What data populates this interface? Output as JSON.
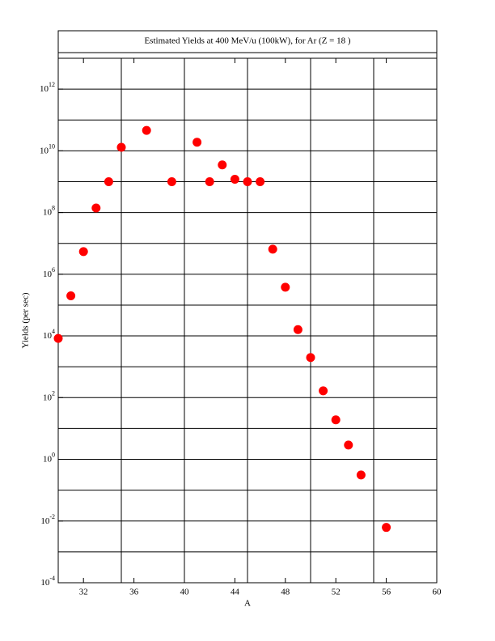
{
  "chart_data": {
    "type": "scatter",
    "title": "Estimated Yields at 400 MeV/u (100kW), for Ar (Z = 18 )",
    "x_label": "A",
    "y_label": "Yields (per sec)",
    "yscale": "log",
    "color": "#ff0000",
    "xlim": [
      30,
      60
    ],
    "ylim": [
      0.0001,
      10000000000000.0
    ],
    "xticks": [
      32,
      36,
      40,
      44,
      48,
      52,
      56,
      60
    ],
    "xgrid": [
      35,
      40,
      45,
      50,
      55
    ],
    "yticks": [
      {
        "value": 0.0001,
        "label": "10",
        "exp": "-4"
      },
      {
        "value": 0.01,
        "label": "10",
        "exp": "-2"
      },
      {
        "value": 1,
        "label": "10",
        "exp": "0"
      },
      {
        "value": 100,
        "label": "10",
        "exp": "2"
      },
      {
        "value": 10000,
        "label": "10",
        "exp": "4"
      },
      {
        "value": 1000000,
        "label": "10",
        "exp": "6"
      },
      {
        "value": 100000000,
        "label": "10",
        "exp": "8"
      },
      {
        "value": 10000000000,
        "label": "10",
        "exp": "10"
      },
      {
        "value": 1000000000000,
        "label": "10",
        "exp": "12"
      }
    ],
    "ygrid": [
      0.001,
      0.01,
      0.1,
      1,
      10,
      100,
      1000,
      10000,
      100000,
      1000000,
      10000000,
      100000000,
      1000000000,
      10000000000,
      100000000000,
      1000000000000
    ],
    "x": [
      30,
      31,
      32,
      33,
      34,
      35,
      37,
      39,
      41,
      42,
      43,
      44,
      45,
      46,
      47,
      48,
      49,
      50,
      51,
      52,
      53,
      54,
      56
    ],
    "values": [
      8300,
      200000,
      5400000,
      140000000,
      1000000000,
      13000000000,
      46000000000,
      1000000000,
      19000000000,
      1000000000,
      3500000000,
      1200000000,
      1000000000,
      1000000000,
      6500000,
      380000,
      16000,
      2000,
      166,
      19,
      2.9,
      0.31,
      0.0062
    ]
  }
}
